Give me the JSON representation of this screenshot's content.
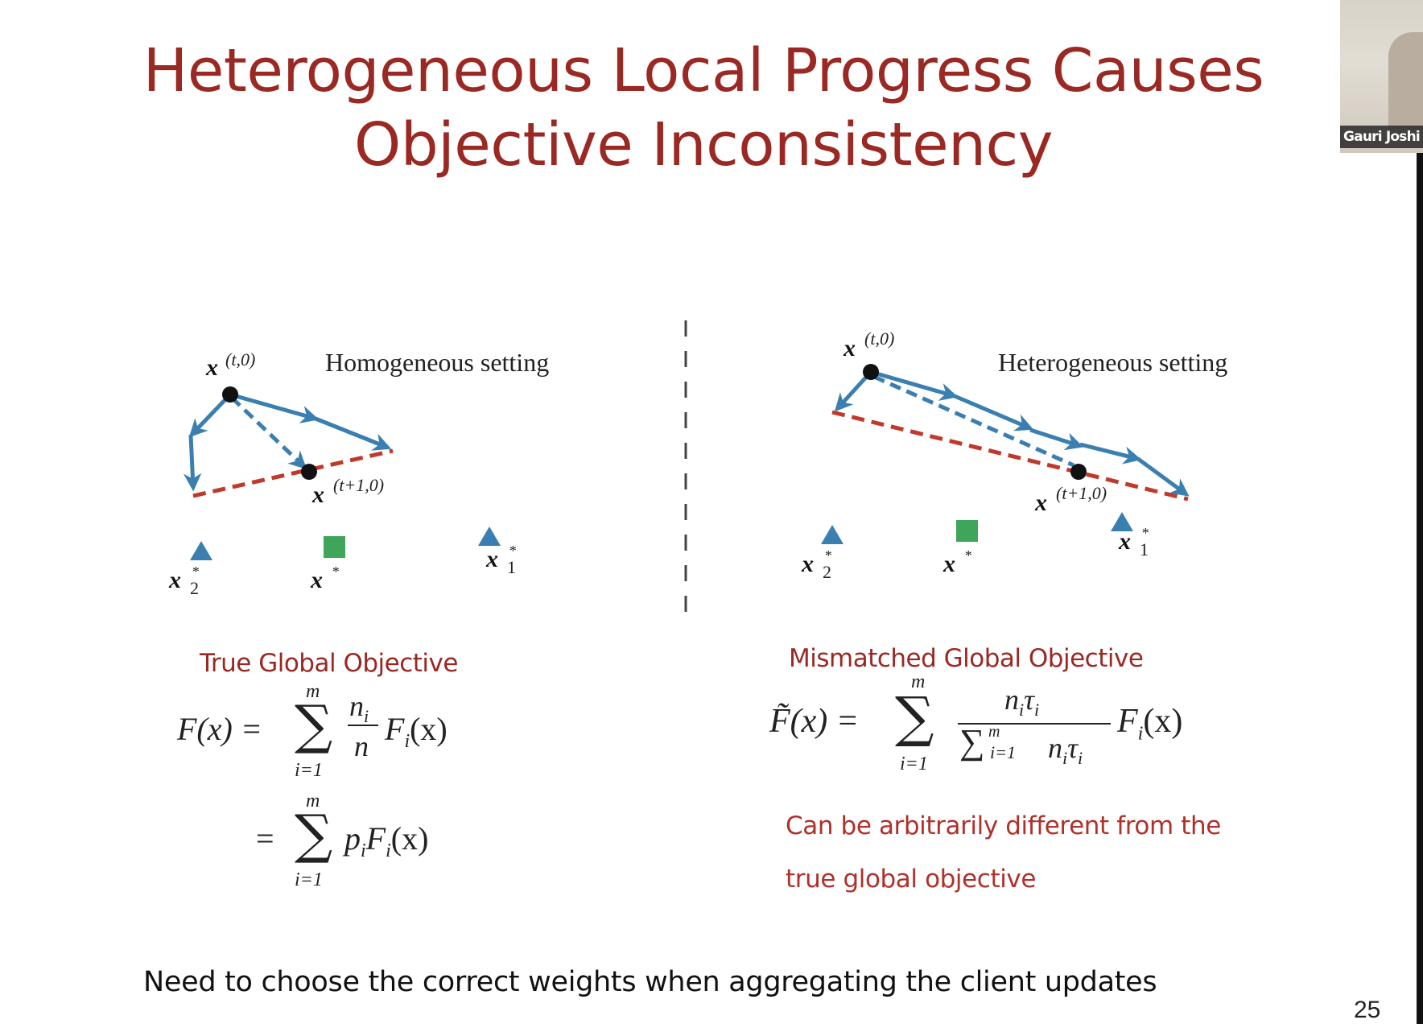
{
  "title": {
    "line1": "Heterogeneous Local Progress Causes",
    "line2": "Objective Inconsistency"
  },
  "left_panel": {
    "setting": "Homogeneous setting",
    "start_label": "x",
    "start_sup": "(t,0)",
    "next_label": "x",
    "next_sup": "(t+1,0)",
    "opt2_label": "x",
    "opt2_sub": "2",
    "opt2_sup": "*",
    "global_label": "x",
    "global_sup": "*",
    "opt1_label": "x",
    "opt1_sub": "1",
    "opt1_sup": "*"
  },
  "right_panel": {
    "setting": "Heterogeneous setting",
    "start_label": "x",
    "start_sup": "(t,0)",
    "next_label": "x",
    "next_sup": "(t+1,0)",
    "opt2_label": "x",
    "opt2_sub": "2",
    "opt2_sup": "*",
    "global_label": "x",
    "global_sup": "*",
    "opt1_label": "x",
    "opt1_sub": "1",
    "opt1_sup": "*"
  },
  "true_objective": {
    "label": "True Global Objective",
    "lhs": "F(x) =",
    "sum_top": "m",
    "sum_bottom": "i=1",
    "frac_num": "n",
    "frac_num_sub": "i",
    "frac_den": "n",
    "term": "F",
    "term_sub": "i",
    "term_arg": "(x)",
    "eq2": "=",
    "sum2_top": "m",
    "sum2_bottom": "i=1",
    "term2": "p",
    "term2_sub": "i",
    "term2_f": "F",
    "term2_f_sub": "i",
    "term2_arg": "(x)"
  },
  "mismatched_objective": {
    "label": "Mismatched Global Objective",
    "lhs": "F̃(x) =",
    "sum_top": "m",
    "sum_bottom": "i=1",
    "frac_num": "n",
    "frac_num_sub": "i",
    "frac_num_tau": "τ",
    "frac_num_tau_sub": "i",
    "frac_den_sum_top": "m",
    "frac_den_sum_bottom": "i=1",
    "frac_den": "n",
    "frac_den_sub": "i",
    "frac_den_tau": "τ",
    "frac_den_tau_sub": "i",
    "term": "F",
    "term_sub": "i",
    "term_arg": "(x)"
  },
  "note": {
    "line1": "Can be arbitrarily different from the",
    "line2": "true global objective"
  },
  "bottom_text": "Need to choose the correct weights when aggregating the client updates",
  "page_number": "25",
  "webcam_name": "Gauri Joshi",
  "colors": {
    "title": "#9a2823",
    "arrow": "#3a7fb0",
    "dashed_line": "#c0392b",
    "optimum_marker": "#3a7fb0",
    "global_marker": "#3ea55a"
  }
}
